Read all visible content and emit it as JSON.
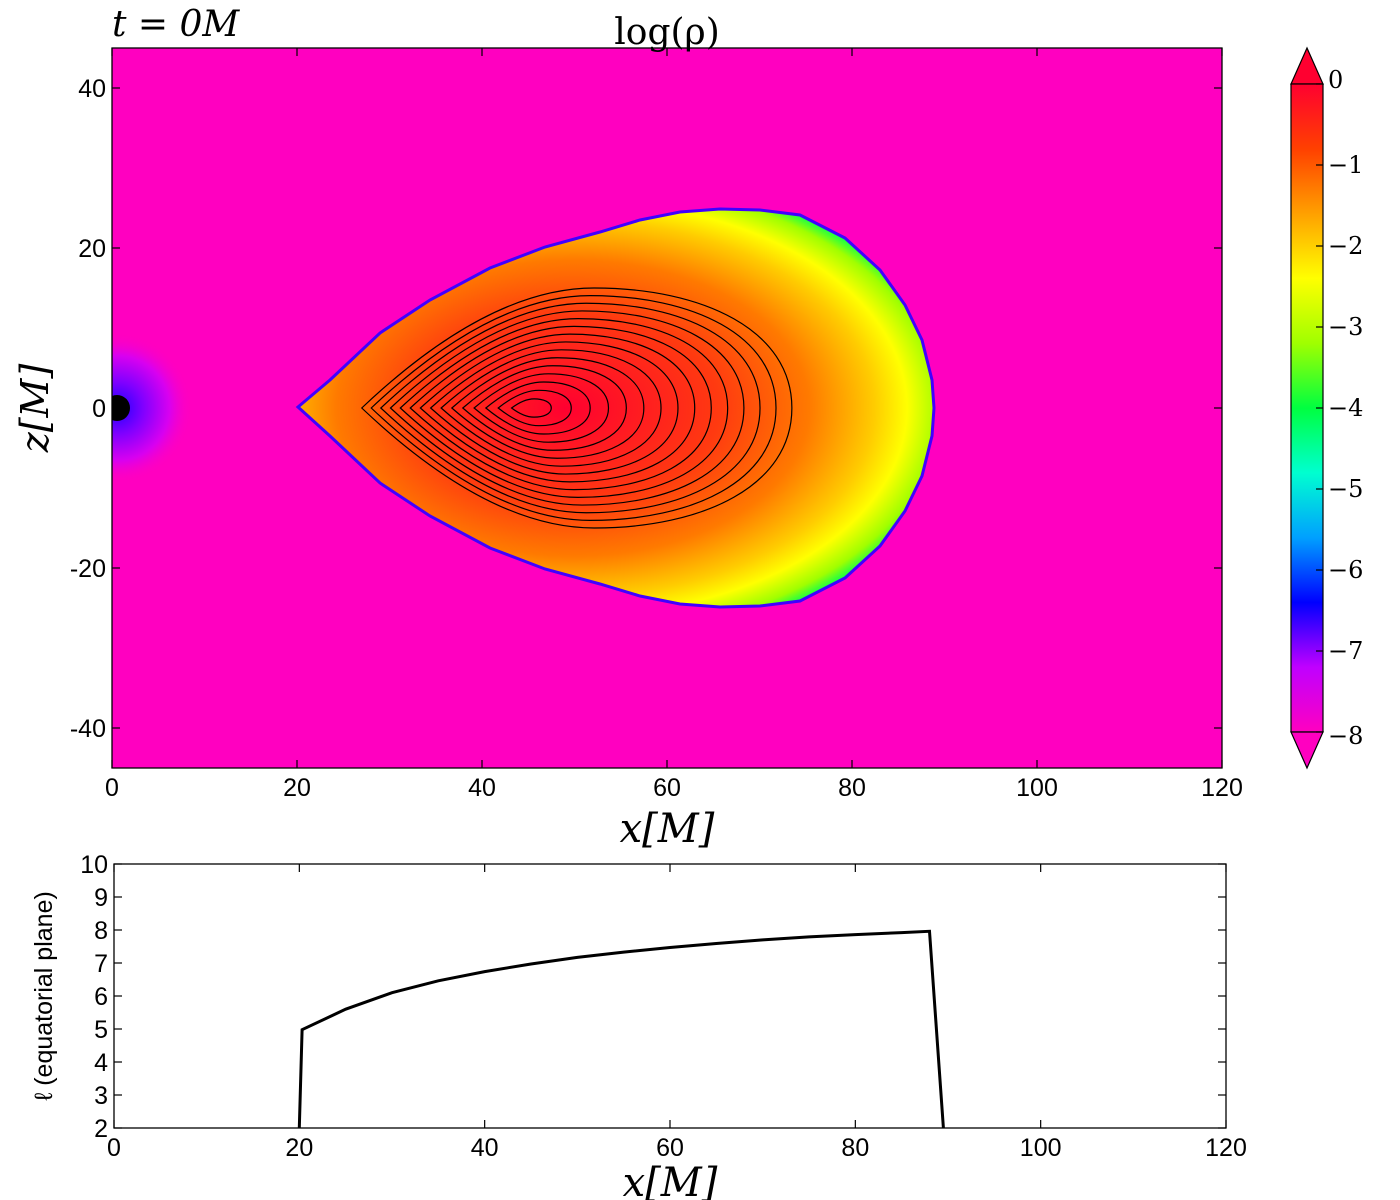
{
  "chart_data": [
    {
      "type": "heatmap",
      "title": "log(ρ)",
      "time_label": "t = 0M",
      "xlabel": "x[M]",
      "ylabel": "z[M]",
      "xlim": [
        0,
        120
      ],
      "ylim": [
        -45,
        45
      ],
      "x_ticks": [
        "0",
        "20",
        "40",
        "60",
        "80",
        "100",
        "120"
      ],
      "y_ticks": [
        "40",
        "20",
        "0",
        "-20",
        "-40"
      ],
      "colorbar": {
        "range": [
          -8,
          0
        ],
        "extend": "both",
        "ticks": [
          "0",
          "−1",
          "−2",
          "−3",
          "−4",
          "−5",
          "−6",
          "−7",
          "−8"
        ],
        "tick_values": [
          0,
          -1,
          -2,
          -3,
          -4,
          -5,
          -6,
          -7,
          -8
        ],
        "colormap": [
          "#ff00c0",
          "#c000ff",
          "#0000ff",
          "#00a0ff",
          "#00ffd0",
          "#00ff40",
          "#a0ff00",
          "#ffff00",
          "#ffa000",
          "#ff4000",
          "#ff0030"
        ]
      },
      "background_color": "#ff00c0",
      "torus": {
        "inner_edge_x": 20,
        "density_max_x": 45,
        "outer_edge_x": 89,
        "half_height": 25
      },
      "contour_count": 15,
      "contour_color": "#000000",
      "black_hole_color": "#000000"
    },
    {
      "type": "line",
      "xlabel": "x[M]",
      "ylabel": "ℓ (equatorial plane)",
      "xlim": [
        0,
        120
      ],
      "ylim": [
        2,
        10
      ],
      "x_ticks": [
        "0",
        "20",
        "40",
        "60",
        "80",
        "100",
        "120"
      ],
      "y_ticks": [
        "10",
        "9",
        "8",
        "7",
        "6",
        "5",
        "4",
        "3",
        "2"
      ],
      "series": [
        {
          "x": [
            20,
            20.3,
            25,
            30,
            35,
            40,
            45,
            50,
            55,
            60,
            65,
            70,
            75,
            80,
            85,
            88,
            89.5
          ],
          "y": [
            2,
            4.98,
            5.6,
            6.1,
            6.46,
            6.74,
            6.97,
            7.17,
            7.33,
            7.47,
            7.59,
            7.7,
            7.79,
            7.86,
            7.92,
            7.96,
            2
          ],
          "color": "#000000"
        }
      ]
    }
  ]
}
